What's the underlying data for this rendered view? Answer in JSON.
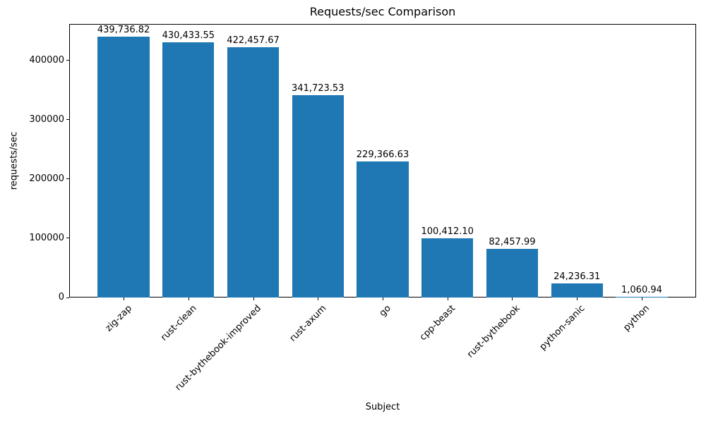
{
  "chart_data": {
    "type": "bar",
    "title": "Requests/sec Comparison",
    "xlabel": "Subject",
    "ylabel": "requests/sec",
    "categories": [
      "zig-zap",
      "rust-clean",
      "rust-bythebook-improved",
      "rust-axum",
      "go",
      "cpp-beast",
      "rust-bythebook",
      "python-sanic",
      "python"
    ],
    "values": [
      439736.82,
      430433.55,
      422457.67,
      341723.53,
      229366.63,
      100412.1,
      82457.99,
      24236.31,
      1060.94
    ],
    "bar_labels": [
      "439,736.82",
      "430,433.55",
      "422,457.67",
      "341,723.53",
      "229,366.63",
      "100,412.10",
      "82,457.99",
      "24,236.31",
      "1,060.94"
    ],
    "yticks": [
      0,
      100000,
      200000,
      300000,
      400000
    ],
    "ytick_labels": [
      "0",
      "100000",
      "200000",
      "300000",
      "400000"
    ],
    "ylim": [
      0,
      461723.66
    ],
    "bar_color": "#1f77b4",
    "grid": false,
    "legend": null,
    "xtick_rotation": 45
  }
}
